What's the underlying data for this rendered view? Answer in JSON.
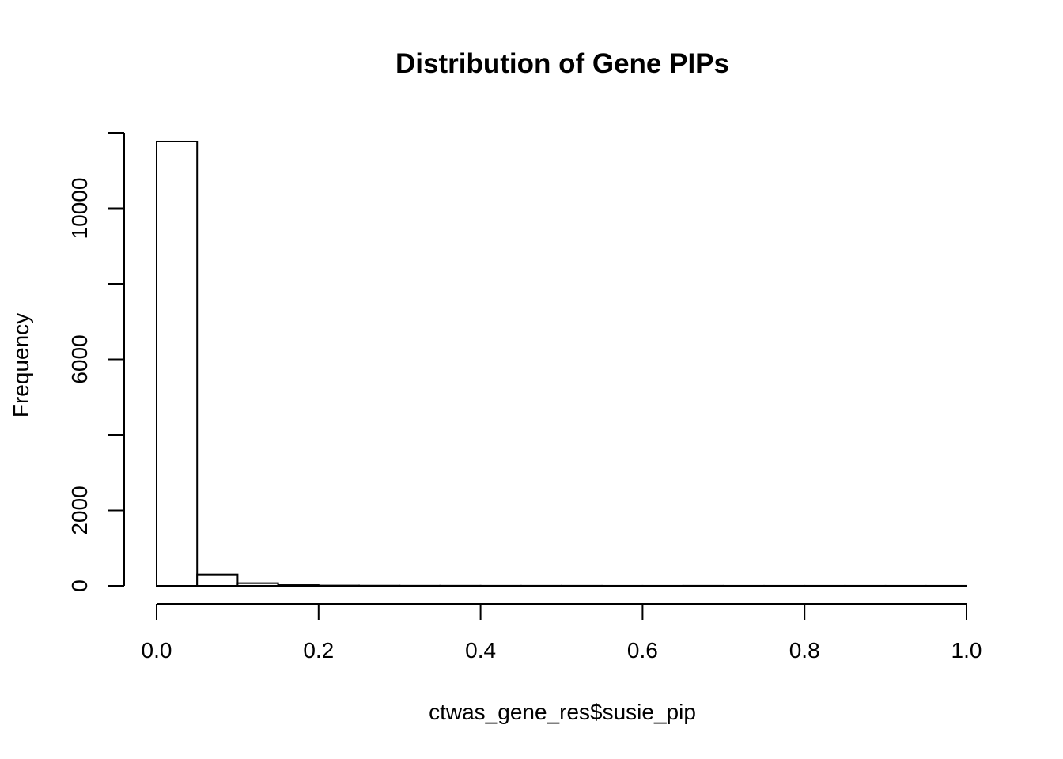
{
  "chart_data": {
    "type": "bar",
    "title": "Distribution of Gene PIPs",
    "xlabel": "ctwas_gene_res$susie_pip",
    "ylabel": "Frequency",
    "xlim": [
      0,
      1
    ],
    "ylim": [
      0,
      12000
    ],
    "x_ticks": [
      0.0,
      0.2,
      0.4,
      0.6,
      0.8,
      1.0
    ],
    "x_tick_labels": [
      "0.0",
      "0.2",
      "0.4",
      "0.6",
      "0.8",
      "1.0"
    ],
    "y_ticks": [
      0,
      2000,
      4000,
      6000,
      8000,
      10000,
      12000
    ],
    "y_tick_labels": [
      "0",
      "2000",
      "",
      "6000",
      "",
      "10000",
      ""
    ],
    "bin_width": 0.05,
    "bins": [
      [
        0.0,
        0.05
      ],
      [
        0.05,
        0.1
      ],
      [
        0.1,
        0.15
      ],
      [
        0.15,
        0.2
      ],
      [
        0.2,
        0.25
      ],
      [
        0.25,
        0.3
      ],
      [
        0.3,
        0.35
      ],
      [
        0.35,
        0.4
      ],
      [
        0.4,
        0.45
      ],
      [
        0.45,
        0.5
      ],
      [
        0.5,
        0.55
      ],
      [
        0.55,
        0.6
      ],
      [
        0.6,
        0.65
      ],
      [
        0.65,
        0.7
      ],
      [
        0.7,
        0.75
      ],
      [
        0.75,
        0.8
      ],
      [
        0.8,
        0.85
      ],
      [
        0.85,
        0.9
      ],
      [
        0.9,
        0.95
      ],
      [
        0.95,
        1.0
      ]
    ],
    "values": [
      11770,
      300,
      70,
      20,
      8,
      5,
      3,
      3,
      2,
      2,
      2,
      1,
      1,
      2,
      1,
      1,
      1,
      1,
      1,
      1
    ],
    "grid": false,
    "legend": "none",
    "bar_fill": "#ffffff",
    "bar_stroke": "#000000"
  }
}
